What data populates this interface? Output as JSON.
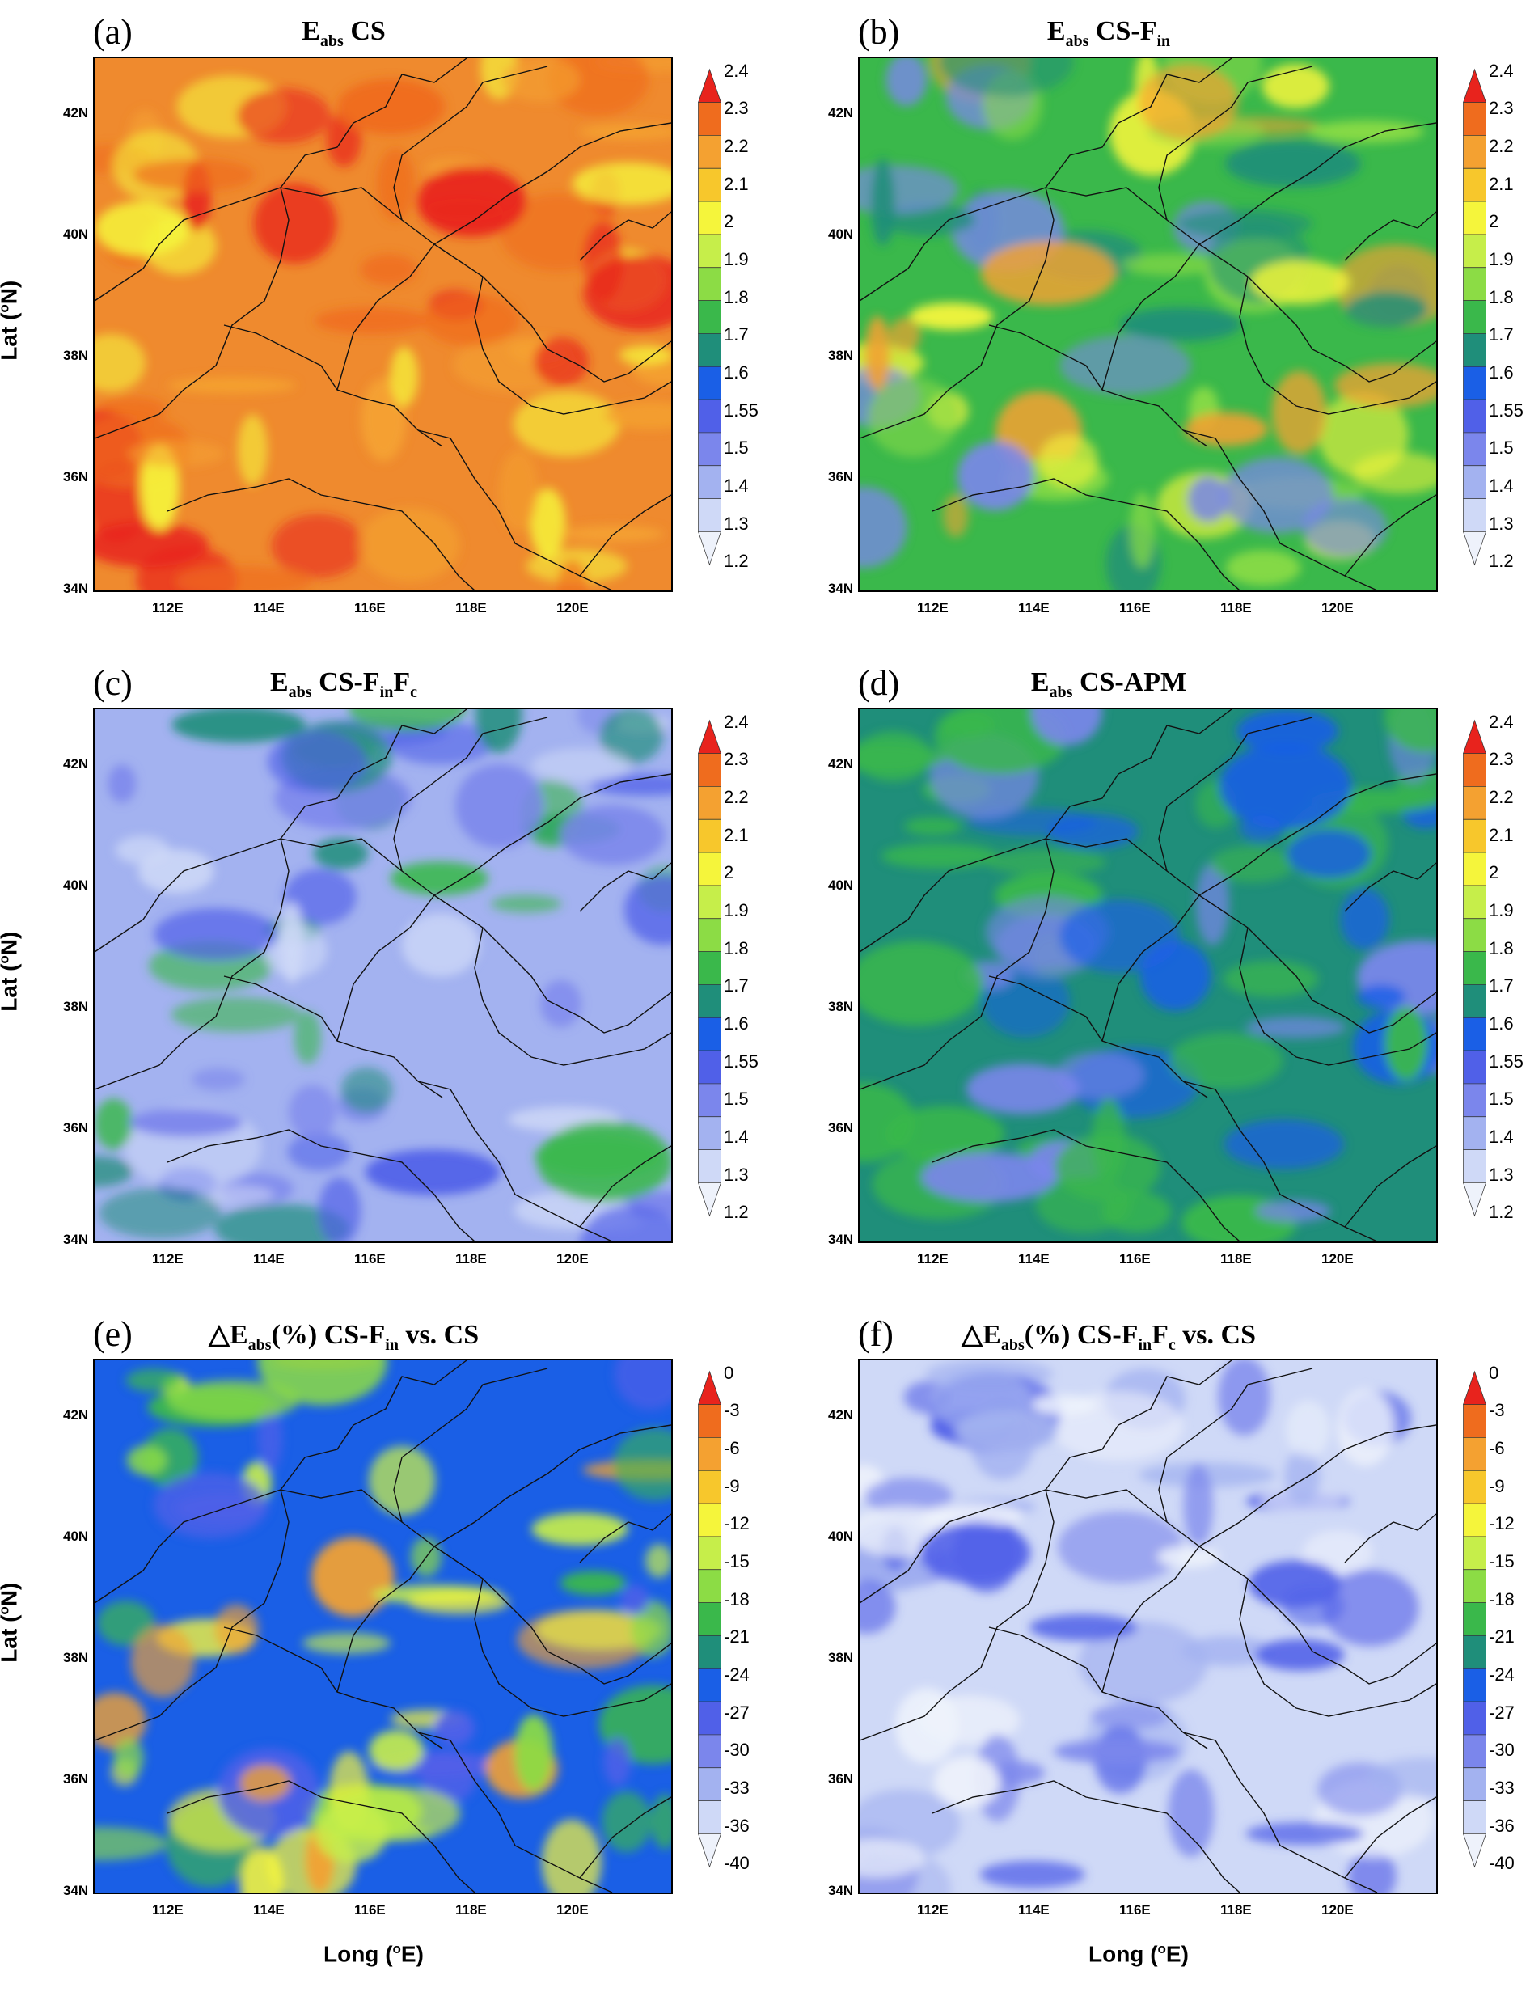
{
  "x_ticks": [
    "112E",
    "114E",
    "116E",
    "118E",
    "120E"
  ],
  "y_ticks": [
    "42N",
    "40N",
    "38N",
    "36N",
    "34N"
  ],
  "y_axis_label": {
    "prefix": "Lat (",
    "sup": "o",
    "suffix": "N)"
  },
  "x_axis_label": {
    "prefix": "Long (",
    "sup": "o",
    "suffix": "E)"
  },
  "colorbars": {
    "eabs": {
      "labels": [
        "2.4",
        "2.3",
        "2.2",
        "2.1",
        "2",
        "1.9",
        "1.8",
        "1.7",
        "1.6",
        "1.55",
        "1.5",
        "1.4",
        "1.3",
        "1.2"
      ],
      "colors": [
        "#e8231d",
        "#ef6c1e",
        "#f4a131",
        "#f7c72c",
        "#f5f53b",
        "#c6ee4a",
        "#8cdc45",
        "#3ab84b",
        "#1f8e7a",
        "#1a5fe6",
        "#5060e8",
        "#7b86ec",
        "#a3b2f0",
        "#cfd9f7",
        "#eef2fb"
      ]
    },
    "pct": {
      "labels": [
        "0",
        "-3",
        "-6",
        "-9",
        "-12",
        "-15",
        "-18",
        "-21",
        "-24",
        "-27",
        "-30",
        "-33",
        "-36",
        "-40"
      ],
      "colors": [
        "#e8231d",
        "#ef6c1e",
        "#f4a131",
        "#f7c72c",
        "#f5f53b",
        "#c6ee4a",
        "#8cdc45",
        "#3ab84b",
        "#1f8e7a",
        "#1a5fe6",
        "#5060e8",
        "#7b86ec",
        "#a3b2f0",
        "#cfd9f7",
        "#eef2fb"
      ]
    }
  },
  "panels": [
    {
      "letter": "(a)",
      "title_main": "E",
      "title_sub": "abs",
      "title_rest": " CS",
      "title_sub2": "",
      "title_rest2": "",
      "title_sub3": "",
      "title_tail": "",
      "colorbar": "eabs",
      "base_color": "#ef8a2e",
      "blobs": [
        "#f4a131",
        "#e8231d",
        "#f5f53b",
        "#ef6c1e"
      ]
    },
    {
      "letter": "(b)",
      "title_main": "E",
      "title_sub": "abs",
      "title_rest": " CS-F",
      "title_sub2": "in",
      "title_rest2": "",
      "title_sub3": "",
      "title_tail": "",
      "colorbar": "eabs",
      "base_color": "#3ab84b",
      "blobs": [
        "#8cdc45",
        "#f5f53b",
        "#1f8e7a",
        "#7b86ec",
        "#f4a131"
      ]
    },
    {
      "letter": "(c)",
      "title_main": "E",
      "title_sub": "abs",
      "title_rest": " CS-F",
      "title_sub2": "in",
      "title_rest2": "F",
      "title_sub3": "c",
      "title_tail": "",
      "colorbar": "eabs",
      "base_color": "#a3b2f0",
      "blobs": [
        "#7b86ec",
        "#5060e8",
        "#1f8e7a",
        "#cfd9f7",
        "#3ab84b"
      ]
    },
    {
      "letter": "(d)",
      "title_main": "E",
      "title_sub": "abs",
      "title_rest": " CS-APM",
      "title_sub2": "",
      "title_rest2": "",
      "title_sub3": "",
      "title_tail": "",
      "colorbar": "eabs",
      "base_color": "#1f8e7a",
      "blobs": [
        "#3ab84b",
        "#1a5fe6",
        "#7b86ec",
        "#3ab84b"
      ]
    },
    {
      "letter": "(e)",
      "title_main": "△E",
      "title_sub": "abs",
      "title_rest": "(%) CS-F",
      "title_sub2": "in",
      "title_rest2": " vs. CS",
      "title_sub3": "",
      "title_tail": "",
      "colorbar": "pct",
      "base_color": "#1a5fe6",
      "blobs": [
        "#3ab84b",
        "#c6ee4a",
        "#f5f53b",
        "#5060e8",
        "#f4a131",
        "#8cdc45"
      ]
    },
    {
      "letter": "(f)",
      "title_main": "△E",
      "title_sub": "abs",
      "title_rest": "(%) CS-F",
      "title_sub2": "in",
      "title_rest2": "F",
      "title_sub3": "c",
      "title_tail": " vs. CS",
      "colorbar": "pct",
      "base_color": "#cfd9f7",
      "blobs": [
        "#a3b2f0",
        "#7b86ec",
        "#eef2fb",
        "#5060e8"
      ]
    }
  ]
}
